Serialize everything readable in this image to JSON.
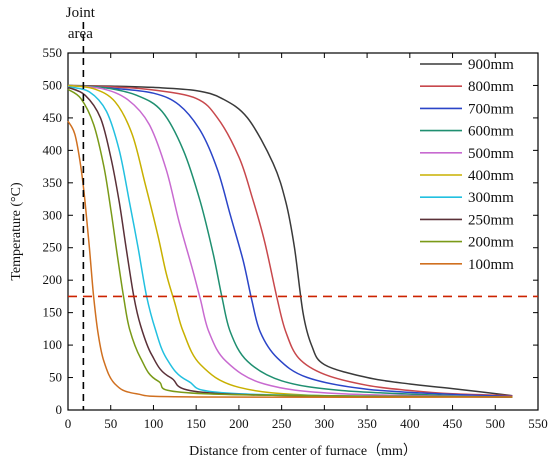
{
  "chart_data": {
    "type": "line",
    "title": "",
    "xlabel": "Distance from center of furnace（mm）",
    "ylabel": "Temperature (°C)",
    "xlim": [
      0,
      550
    ],
    "ylim": [
      0,
      550
    ],
    "xticks": [
      0,
      50,
      100,
      150,
      200,
      250,
      300,
      350,
      400,
      450,
      500,
      550
    ],
    "yticks": [
      0,
      50,
      100,
      150,
      200,
      250,
      300,
      350,
      400,
      450,
      500,
      550
    ],
    "grid": false,
    "legend_position": "top-right",
    "annotations": {
      "joint_area_label": [
        "Joint",
        "area"
      ],
      "joint_area_x": 18,
      "threshold_y": 175
    },
    "colors": {
      "joint_line": "#000000",
      "threshold_line": "#cc2200"
    },
    "series": [
      {
        "name": "900mm",
        "color": "#3a3a3a",
        "points": [
          [
            0,
            500
          ],
          [
            50,
            499
          ],
          [
            100,
            497
          ],
          [
            150,
            492
          ],
          [
            180,
            480
          ],
          [
            210,
            450
          ],
          [
            240,
            380
          ],
          [
            255,
            320
          ],
          [
            265,
            250
          ],
          [
            275,
            150
          ],
          [
            285,
            100
          ],
          [
            300,
            70
          ],
          [
            350,
            50
          ],
          [
            400,
            40
          ],
          [
            450,
            33
          ],
          [
            520,
            22
          ]
        ]
      },
      {
        "name": "800mm",
        "color": "#c8484c",
        "points": [
          [
            0,
            500
          ],
          [
            50,
            498
          ],
          [
            100,
            493
          ],
          [
            150,
            480
          ],
          [
            175,
            450
          ],
          [
            200,
            390
          ],
          [
            215,
            330
          ],
          [
            230,
            260
          ],
          [
            245,
            170
          ],
          [
            255,
            120
          ],
          [
            270,
            80
          ],
          [
            300,
            55
          ],
          [
            350,
            38
          ],
          [
            400,
            30
          ],
          [
            450,
            25
          ],
          [
            520,
            22
          ]
        ]
      },
      {
        "name": "700mm",
        "color": "#2b45c8",
        "points": [
          [
            0,
            500
          ],
          [
            50,
            496
          ],
          [
            100,
            488
          ],
          [
            130,
            470
          ],
          [
            155,
            430
          ],
          [
            175,
            370
          ],
          [
            190,
            300
          ],
          [
            205,
            230
          ],
          [
            215,
            170
          ],
          [
            225,
            120
          ],
          [
            245,
            80
          ],
          [
            280,
            50
          ],
          [
            350,
            32
          ],
          [
            450,
            24
          ],
          [
            520,
            21
          ]
        ]
      },
      {
        "name": "600mm",
        "color": "#1f8f70",
        "points": [
          [
            0,
            500
          ],
          [
            40,
            497
          ],
          [
            80,
            485
          ],
          [
            110,
            460
          ],
          [
            135,
            400
          ],
          [
            155,
            320
          ],
          [
            170,
            240
          ],
          [
            180,
            175
          ],
          [
            190,
            120
          ],
          [
            210,
            75
          ],
          [
            250,
            45
          ],
          [
            320,
            30
          ],
          [
            450,
            22
          ],
          [
            520,
            20
          ]
        ]
      },
      {
        "name": "500mm",
        "color": "#c86ad0",
        "points": [
          [
            0,
            500
          ],
          [
            40,
            495
          ],
          [
            70,
            478
          ],
          [
            95,
            440
          ],
          [
            115,
            370
          ],
          [
            130,
            290
          ],
          [
            145,
            220
          ],
          [
            155,
            170
          ],
          [
            165,
            120
          ],
          [
            185,
            75
          ],
          [
            230,
            40
          ],
          [
            320,
            25
          ],
          [
            520,
            20
          ]
        ]
      },
      {
        "name": "400mm",
        "color": "#c8b000",
        "points": [
          [
            0,
            500
          ],
          [
            30,
            495
          ],
          [
            55,
            475
          ],
          [
            75,
            425
          ],
          [
            90,
            350
          ],
          [
            105,
            270
          ],
          [
            115,
            210
          ],
          [
            125,
            165
          ],
          [
            135,
            120
          ],
          [
            155,
            70
          ],
          [
            200,
            35
          ],
          [
            300,
            22
          ],
          [
            520,
            20
          ]
        ]
      },
      {
        "name": "300mm",
        "color": "#22c0e0",
        "points": [
          [
            0,
            498
          ],
          [
            25,
            490
          ],
          [
            45,
            460
          ],
          [
            60,
            400
          ],
          [
            72,
            320
          ],
          [
            82,
            250
          ],
          [
            92,
            175
          ],
          [
            102,
            125
          ],
          [
            115,
            80
          ],
          [
            140,
            45
          ],
          [
            200,
            25
          ],
          [
            520,
            20
          ]
        ]
      },
      {
        "name": "250mm",
        "color": "#5a3038",
        "points": [
          [
            0,
            497
          ],
          [
            20,
            485
          ],
          [
            38,
            450
          ],
          [
            50,
            390
          ],
          [
            60,
            320
          ],
          [
            68,
            250
          ],
          [
            77,
            175
          ],
          [
            85,
            130
          ],
          [
            98,
            85
          ],
          [
            120,
            50
          ],
          [
            180,
            25
          ],
          [
            520,
            20
          ]
        ]
      },
      {
        "name": "200mm",
        "color": "#7a9a18",
        "points": [
          [
            0,
            494
          ],
          [
            15,
            480
          ],
          [
            30,
            440
          ],
          [
            42,
            375
          ],
          [
            50,
            310
          ],
          [
            57,
            245
          ],
          [
            65,
            175
          ],
          [
            72,
            125
          ],
          [
            85,
            80
          ],
          [
            105,
            45
          ],
          [
            160,
            25
          ],
          [
            520,
            20
          ]
        ]
      },
      {
        "name": "100mm",
        "color": "#d07020",
        "points": [
          [
            0,
            445
          ],
          [
            8,
            425
          ],
          [
            15,
            375
          ],
          [
            20,
            320
          ],
          [
            25,
            250
          ],
          [
            30,
            175
          ],
          [
            35,
            120
          ],
          [
            42,
            75
          ],
          [
            55,
            40
          ],
          [
            80,
            25
          ],
          [
            150,
            20
          ],
          [
            520,
            20
          ]
        ]
      }
    ]
  }
}
